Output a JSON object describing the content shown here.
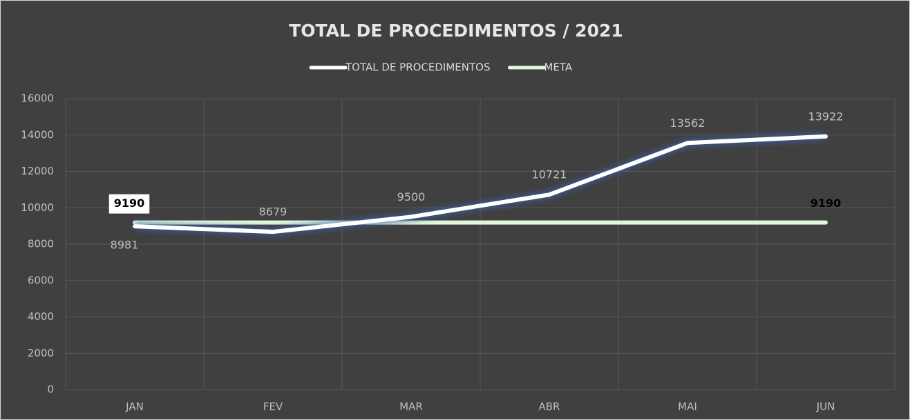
{
  "chart_data": {
    "type": "line",
    "title": "TOTAL DE PROCEDIMENTOS / 2021",
    "categories": [
      "JAN",
      "FEV",
      "MAR",
      "ABR",
      "MAI",
      "JUN"
    ],
    "series": [
      {
        "name": "TOTAL DE PROCEDIMENTOS",
        "color": "#ffffff",
        "values": [
          8981,
          8679,
          9500,
          10721,
          13562,
          13922
        ]
      },
      {
        "name": "META",
        "color": "#e2f7dc",
        "values": [
          9190,
          9190,
          9190,
          9190,
          9190,
          9190
        ],
        "value_labels": [
          "9190",
          null,
          null,
          null,
          null,
          "9190"
        ]
      }
    ],
    "ylim": [
      0,
      16000
    ],
    "yticks": [
      0,
      2000,
      4000,
      6000,
      8000,
      10000,
      12000,
      14000,
      16000
    ],
    "grid": true,
    "legend": "top"
  }
}
